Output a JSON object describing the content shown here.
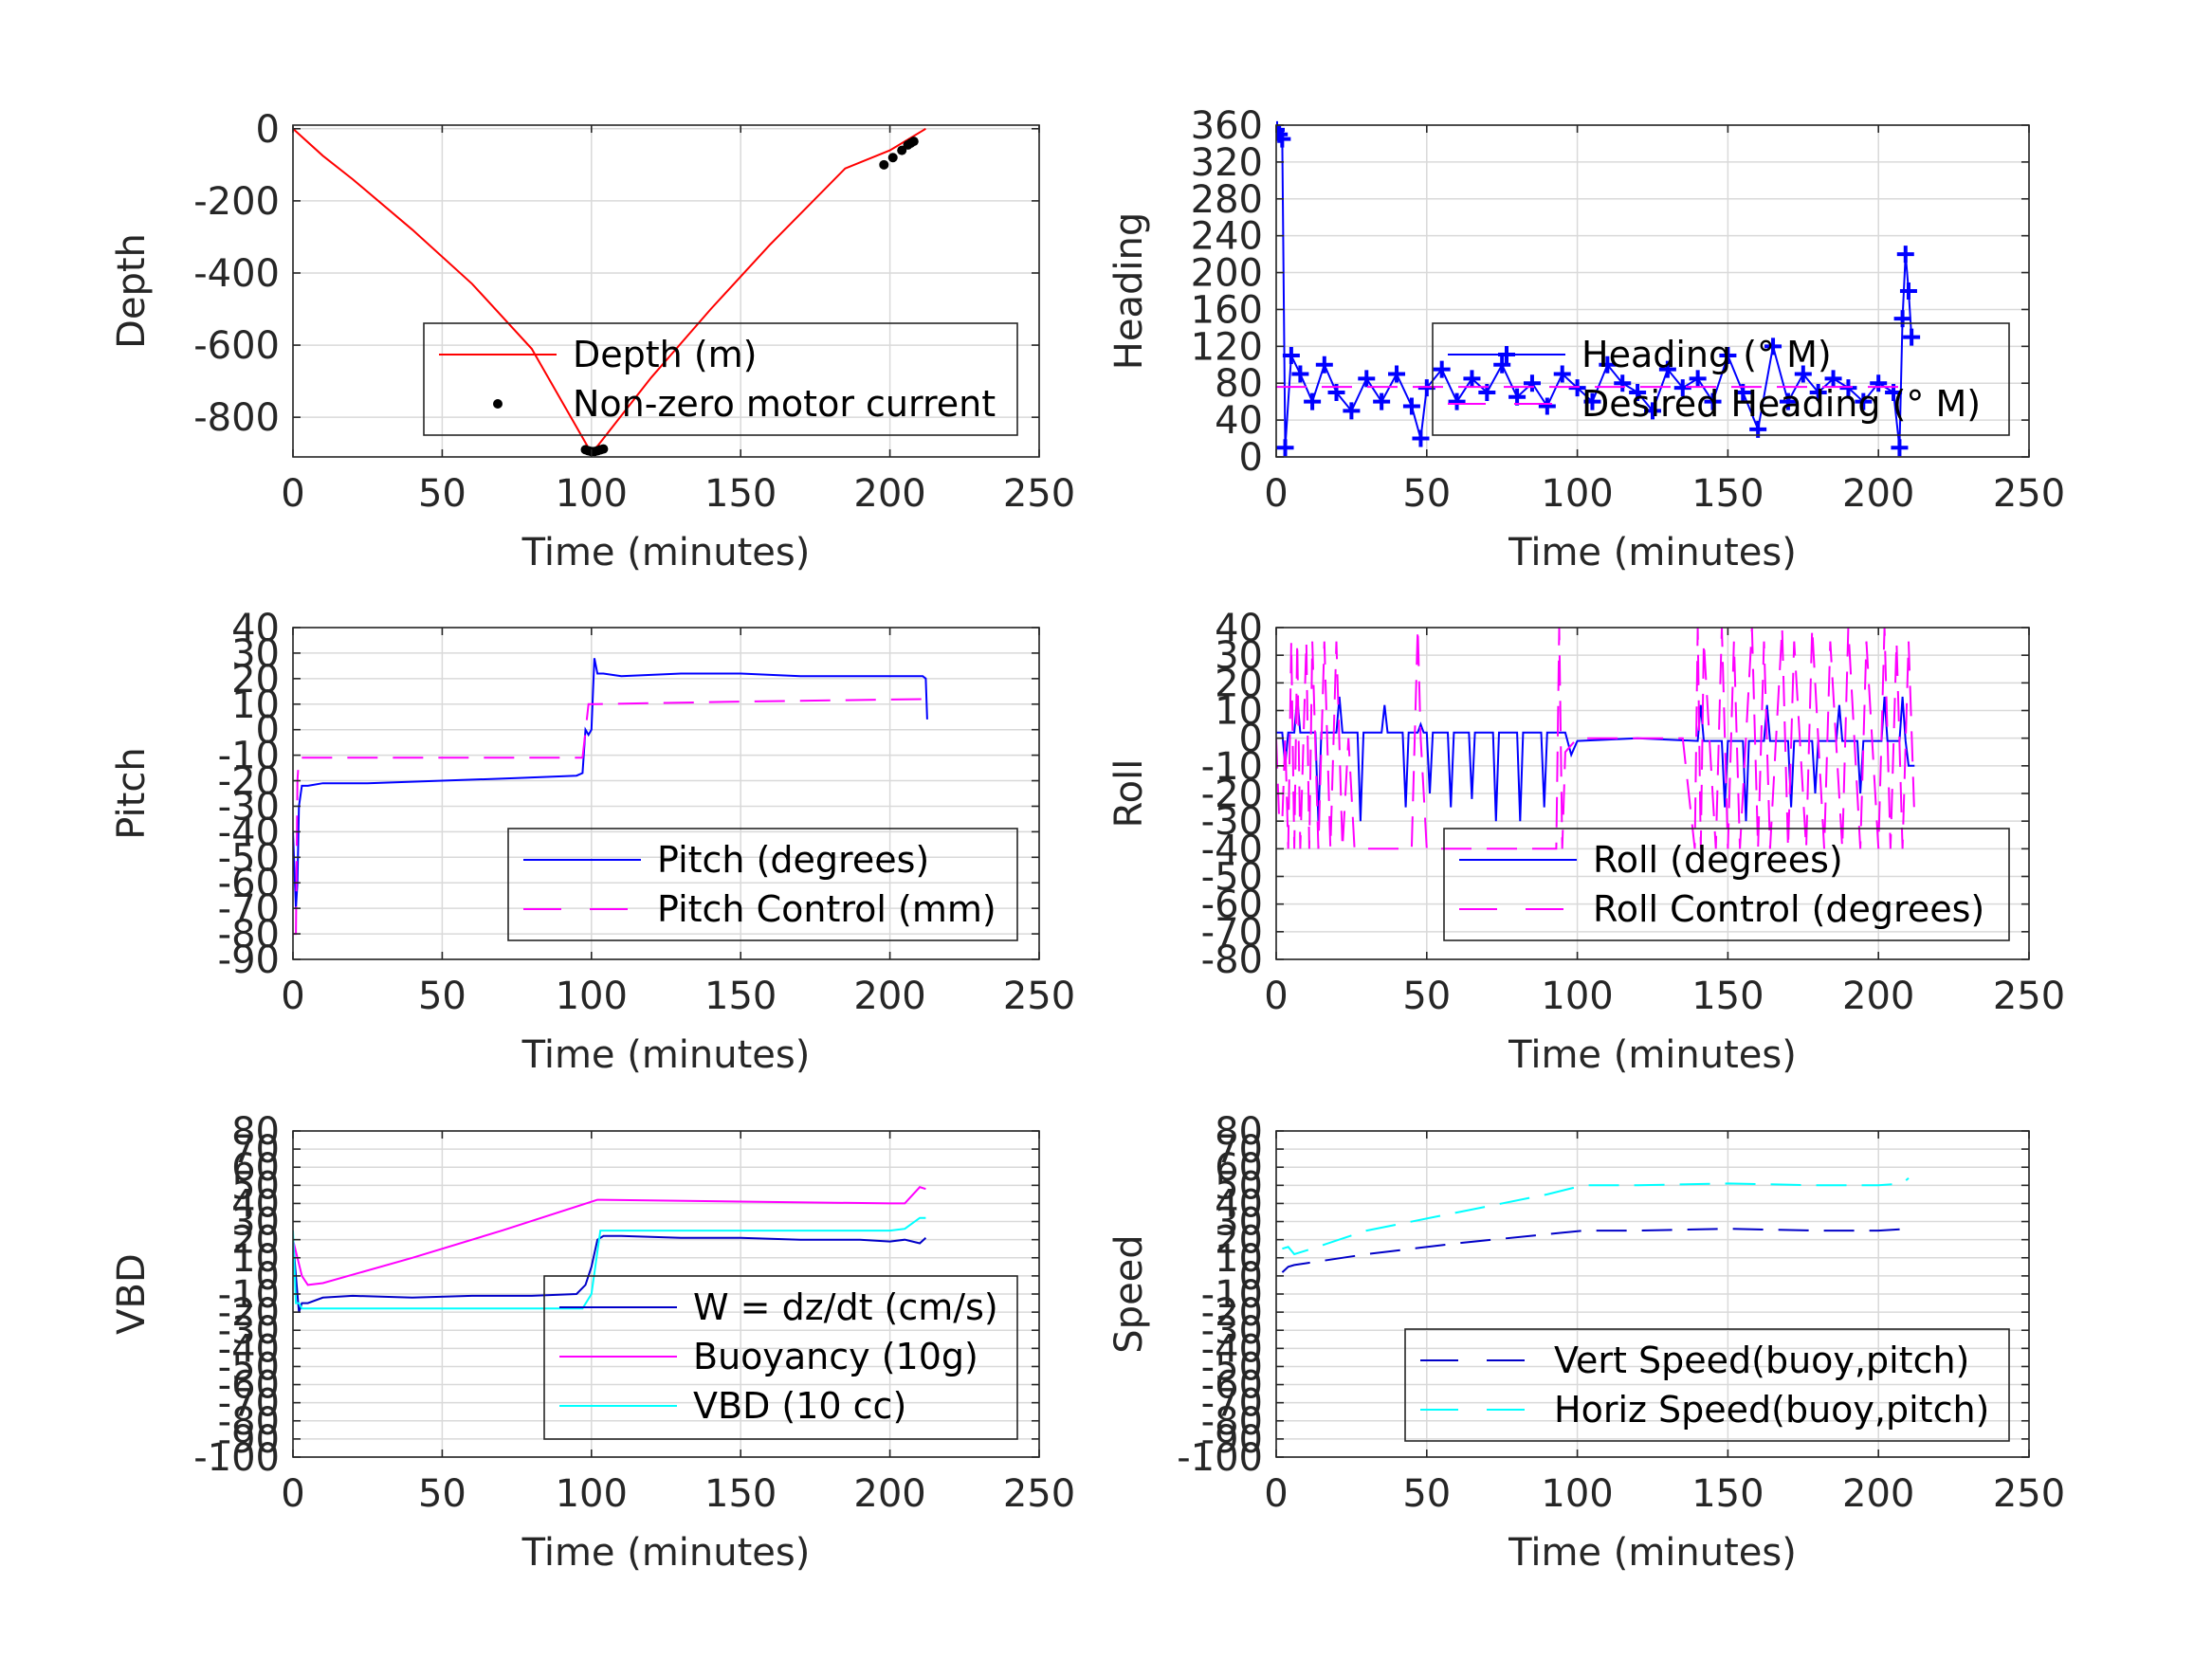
{
  "figure": {
    "background": "#ffffff"
  },
  "chart_data": [
    {
      "id": "depth",
      "type": "line",
      "xlabel": "Time (minutes)",
      "ylabel": "Depth",
      "xlim": [
        0,
        250
      ],
      "ylim": [
        -910,
        10
      ],
      "xticks": [
        0,
        50,
        100,
        150,
        200,
        250
      ],
      "yticks": [
        0,
        -200,
        -400,
        -600,
        -800
      ],
      "ytick_labels": [
        "0",
        "-200",
        "-400",
        "-600",
        "-800"
      ],
      "grid": true,
      "legend_position": "bottom-right",
      "series": [
        {
          "name": "Depth (m)",
          "color": "#ff0000",
          "style": "solid",
          "x": [
            0,
            10,
            20,
            40,
            60,
            80,
            99,
            100,
            102,
            120,
            140,
            160,
            185,
            200,
            212
          ],
          "y": [
            0,
            -75,
            -140,
            -280,
            -430,
            -610,
            -885,
            -895,
            -880,
            -690,
            -500,
            -320,
            -110,
            -60,
            0
          ]
        },
        {
          "name": "Non-zero motor current",
          "color": "#000000",
          "style": "dots",
          "x": [
            98,
            99,
            100,
            101,
            102,
            103,
            104,
            198,
            201,
            204,
            206,
            207,
            208
          ],
          "y": [
            -890,
            -893,
            -895,
            -895,
            -893,
            -890,
            -888,
            -100,
            -80,
            -60,
            -45,
            -40,
            -35
          ]
        }
      ]
    },
    {
      "id": "heading",
      "type": "line",
      "xlabel": "Time (minutes)",
      "ylabel": "Heading",
      "xlim": [
        0,
        250
      ],
      "ylim": [
        0,
        360
      ],
      "xticks": [
        0,
        50,
        100,
        150,
        200,
        250
      ],
      "yticks": [
        0,
        40,
        80,
        120,
        160,
        200,
        240,
        280,
        320,
        360
      ],
      "ytick_labels": [
        "0",
        "40",
        "80",
        "120",
        "160",
        "200",
        "240",
        "280",
        "320",
        "360"
      ],
      "grid": true,
      "legend_position": "upper-right",
      "series": [
        {
          "name": "Heading (° M)",
          "color": "#0000ff",
          "style": "plus",
          "x": [
            0,
            1,
            2,
            3,
            5,
            8,
            12,
            16,
            20,
            25,
            30,
            35,
            40,
            45,
            48,
            50,
            55,
            60,
            65,
            70,
            75,
            80,
            85,
            90,
            95,
            100,
            105,
            110,
            115,
            120,
            125,
            130,
            135,
            140,
            145,
            150,
            155,
            160,
            165,
            170,
            175,
            180,
            185,
            190,
            195,
            200,
            205,
            207,
            208,
            209,
            210,
            211
          ],
          "y": [
            355,
            350,
            345,
            10,
            110,
            90,
            60,
            100,
            70,
            50,
            85,
            60,
            90,
            55,
            20,
            75,
            95,
            60,
            85,
            70,
            100,
            65,
            80,
            55,
            90,
            75,
            60,
            100,
            80,
            70,
            50,
            95,
            75,
            85,
            60,
            110,
            70,
            30,
            120,
            60,
            90,
            70,
            85,
            75,
            60,
            80,
            70,
            10,
            150,
            220,
            180,
            130
          ]
        },
        {
          "name": "Desired Heading (° M)",
          "color": "#ff00ff",
          "style": "dash",
          "x": [
            0,
            210
          ],
          "y": [
            76,
            76
          ]
        }
      ]
    },
    {
      "id": "pitch",
      "type": "line",
      "xlabel": "Time (minutes)",
      "ylabel": "Pitch",
      "xlim": [
        0,
        250
      ],
      "ylim": [
        -90,
        40
      ],
      "xticks": [
        0,
        50,
        100,
        150,
        200,
        250
      ],
      "yticks": [
        40,
        30,
        20,
        10,
        0,
        -10,
        -20,
        -30,
        -40,
        -50,
        -60,
        -70,
        -80,
        -90
      ],
      "ytick_labels": [
        "40",
        "30",
        "20",
        "10",
        "0",
        "-10",
        "-20",
        "-30",
        "-40",
        "-50",
        "-60",
        "-70",
        "-80",
        "-90"
      ],
      "grid": true,
      "legend_position": "lower-right",
      "series": [
        {
          "name": "Pitch (degrees)",
          "color": "#0000ff",
          "style": "solid",
          "x": [
            0,
            1,
            1.5,
            2,
            3,
            5,
            10,
            25,
            50,
            75,
            95,
            97,
            98,
            99,
            100,
            101,
            102,
            104,
            110,
            130,
            150,
            170,
            190,
            205,
            211,
            212,
            212.5
          ],
          "y": [
            -40,
            -70,
            -60,
            -30,
            -22,
            -22,
            -21,
            -21,
            -20,
            -19,
            -18,
            -17,
            0,
            -2,
            0,
            28,
            22,
            22,
            21,
            22,
            22,
            21,
            21,
            21,
            21,
            20,
            4
          ]
        },
        {
          "name": "Pitch Control (mm)",
          "color": "#ff00ff",
          "style": "dash",
          "x": [
            0,
            1,
            1.5,
            2,
            3,
            96,
            97,
            99,
            100,
            101,
            150,
            212
          ],
          "y": [
            -80,
            -80,
            -20,
            -11,
            -11,
            -11,
            -11,
            10,
            10,
            10,
            11,
            12
          ]
        }
      ]
    },
    {
      "id": "roll",
      "type": "line",
      "xlabel": "Time (minutes)",
      "ylabel": "Roll",
      "xlim": [
        0,
        250
      ],
      "ylim": [
        -80,
        40
      ],
      "xticks": [
        0,
        50,
        100,
        150,
        200,
        250
      ],
      "yticks": [
        40,
        30,
        20,
        10,
        0,
        -10,
        -20,
        -30,
        -40,
        -50,
        -60,
        -70,
        -80
      ],
      "ytick_labels": [
        "40",
        "30",
        "20",
        "10",
        "0",
        "-10",
        "-20",
        "-30",
        "-40",
        "-50",
        "-60",
        "-70",
        "-80"
      ],
      "grid": true,
      "legend_position": "lower-right",
      "series": [
        {
          "name": "Roll (degrees)",
          "color": "#0000ff",
          "style": "solid",
          "x": [
            0,
            2,
            3,
            4,
            6,
            7,
            8,
            9,
            13,
            14,
            15,
            20,
            21,
            22,
            27,
            28,
            29,
            35,
            36,
            37,
            42,
            43,
            44,
            47,
            48,
            49,
            50,
            51,
            52,
            57,
            58,
            59,
            64,
            65,
            66,
            72,
            73,
            74,
            80,
            81,
            82,
            88,
            89,
            90,
            93,
            96,
            98,
            100,
            120,
            140,
            141,
            142,
            148,
            149,
            150,
            155,
            156,
            157,
            162,
            163,
            164,
            170,
            171,
            172,
            178,
            179,
            180,
            186,
            187,
            188,
            193,
            194,
            195,
            201,
            202,
            203,
            207,
            208,
            209,
            210,
            211,
            212
          ],
          "y": [
            2,
            2,
            -10,
            2,
            2,
            15,
            2,
            2,
            2,
            -30,
            2,
            2,
            15,
            2,
            2,
            -30,
            2,
            2,
            12,
            2,
            2,
            -25,
            2,
            2,
            5,
            2,
            2,
            -20,
            2,
            2,
            -25,
            2,
            2,
            -22,
            2,
            2,
            -30,
            2,
            2,
            -30,
            2,
            2,
            -25,
            2,
            2,
            2,
            -6,
            -1,
            0,
            -1,
            12,
            -1,
            -1,
            -25,
            -1,
            -1,
            -30,
            -1,
            -1,
            12,
            -1,
            -1,
            -25,
            -1,
            -1,
            -20,
            -1,
            -1,
            12,
            -1,
            -1,
            -20,
            -1,
            -1,
            15,
            -1,
            -1,
            15,
            -1,
            -10,
            -10,
            -10
          ]
        },
        {
          "name": "Roll Control (degrees)",
          "color": "#ff00ff",
          "style": "dash",
          "x": [
            0,
            1,
            2,
            3,
            4,
            5,
            6,
            7,
            8,
            10,
            11,
            12,
            14,
            16,
            18,
            20,
            22,
            24,
            26,
            30,
            35,
            40,
            45,
            46,
            47,
            48,
            50,
            55,
            60,
            65,
            70,
            75,
            80,
            85,
            90,
            93,
            94,
            95,
            96,
            100,
            105,
            110,
            115,
            120,
            125,
            130,
            135,
            139,
            140,
            141,
            142,
            146,
            148,
            150,
            152,
            154,
            158,
            160,
            162,
            164,
            168,
            170,
            172,
            176,
            178,
            182,
            184,
            188,
            190,
            194,
            196,
            200,
            202,
            204,
            206,
            208,
            210,
            212
          ],
          "y": [
            0,
            -30,
            -30,
            0,
            -40,
            35,
            -40,
            35,
            -40,
            35,
            -40,
            35,
            -40,
            35,
            -40,
            35,
            -40,
            0,
            -40,
            -40,
            -40,
            -40,
            -40,
            0,
            40,
            0,
            -40,
            -40,
            -40,
            -40,
            -40,
            -40,
            -40,
            -40,
            -40,
            -40,
            40,
            -40,
            -5,
            0,
            0,
            0,
            0,
            0,
            0,
            0,
            0,
            -40,
            40,
            -40,
            35,
            -40,
            40,
            -40,
            35,
            -40,
            40,
            -40,
            35,
            -40,
            40,
            -40,
            35,
            -40,
            40,
            -40,
            35,
            -40,
            40,
            -40,
            35,
            -40,
            40,
            -40,
            35,
            -40,
            35,
            -30
          ]
        }
      ]
    },
    {
      "id": "vbd",
      "type": "line",
      "xlabel": "Time (minutes)",
      "ylabel": "VBD",
      "xlim": [
        0,
        250
      ],
      "ylim": [
        -100,
        80
      ],
      "xticks": [
        0,
        50,
        100,
        150,
        200,
        250
      ],
      "yticks": [
        80,
        70,
        60,
        50,
        40,
        30,
        20,
        10,
        0,
        -10,
        -20,
        -30,
        -40,
        -50,
        -60,
        -70,
        -80,
        -90,
        -100
      ],
      "ytick_labels": [
        "80",
        "70",
        "60",
        "50",
        "40",
        "30",
        "20",
        "10",
        "0",
        "-10",
        "-20",
        "-30",
        "-40",
        "-50",
        "-60",
        "-70",
        "-80",
        "-90",
        "-100"
      ],
      "grid": true,
      "legend_position": "lower-right",
      "series": [
        {
          "name": "W = dz/dt (cm/s)",
          "color": "#0000c8",
          "style": "solid",
          "x": [
            0,
            1,
            2,
            3,
            5,
            10,
            20,
            40,
            60,
            80,
            95,
            98,
            100,
            102,
            104,
            110,
            130,
            150,
            170,
            190,
            200,
            205,
            210,
            212
          ],
          "y": [
            20,
            0,
            -20,
            -15,
            -15,
            -12,
            -11,
            -12,
            -11,
            -11,
            -10,
            -5,
            5,
            20,
            22,
            22,
            21,
            21,
            20,
            20,
            19,
            20,
            18,
            21
          ]
        },
        {
          "name": "Buoyancy (10g)",
          "color": "#ff00ff",
          "style": "solid",
          "x": [
            0,
            3,
            5,
            10,
            40,
            70,
            102,
            150,
            200,
            205,
            210,
            212
          ],
          "y": [
            20,
            0,
            -5,
            -4,
            10,
            25,
            42,
            41,
            40,
            40,
            49,
            48
          ]
        },
        {
          "name": "VBD (10 cc)",
          "color": "#00ffff",
          "style": "solid",
          "x": [
            0,
            1,
            2,
            3,
            5,
            95,
            97,
            100,
            103,
            105,
            150,
            200,
            205,
            210,
            212
          ],
          "y": [
            25,
            -15,
            -15,
            -18,
            -18,
            -18,
            -18,
            -10,
            25,
            25,
            25,
            25,
            26,
            32,
            32
          ]
        }
      ]
    },
    {
      "id": "speed",
      "type": "line",
      "xlabel": "Time (minutes)",
      "ylabel": "Speed",
      "xlim": [
        0,
        250
      ],
      "ylim": [
        -100,
        80
      ],
      "xticks": [
        0,
        50,
        100,
        150,
        200,
        250
      ],
      "yticks": [
        80,
        70,
        60,
        50,
        40,
        30,
        20,
        10,
        0,
        -10,
        -20,
        -30,
        -40,
        -50,
        -60,
        -70,
        -80,
        -90,
        -100
      ],
      "ytick_labels": [
        "80",
        "70",
        "60",
        "50",
        "40",
        "30",
        "20",
        "10",
        "0",
        "-10",
        "-20",
        "-30",
        "-40",
        "-50",
        "-60",
        "-70",
        "-80",
        "-90",
        "-100"
      ],
      "grid": true,
      "legend_position": "lower-right",
      "series": [
        {
          "name": "Vert Speed(buoy,pitch)",
          "color": "#0000c8",
          "style": "dash",
          "x": [
            2,
            4,
            6,
            10,
            30,
            60,
            90,
            102,
            120,
            150,
            180,
            200,
            210,
            212
          ],
          "y": [
            2,
            5,
            6,
            7,
            12,
            18,
            23,
            25,
            25,
            26,
            25,
            25,
            26,
            26
          ]
        },
        {
          "name": "Horiz Speed(buoy,pitch)",
          "color": "#00ffff",
          "style": "dash",
          "x": [
            2,
            4,
            6,
            10,
            30,
            60,
            90,
            102,
            120,
            150,
            180,
            200,
            208,
            210
          ],
          "y": [
            15,
            16,
            12,
            14,
            25,
            35,
            45,
            50,
            50,
            51,
            50,
            50,
            51,
            54
          ]
        }
      ]
    }
  ]
}
